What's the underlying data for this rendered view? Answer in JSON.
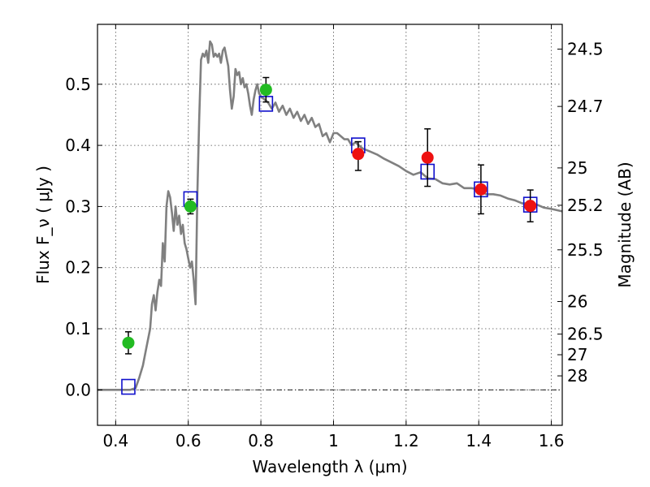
{
  "chart_data": {
    "type": "scatter",
    "title": "",
    "xlabel": "Wavelength  λ (μm)",
    "ylabel": "Flux  F_ν  ( μJy )",
    "ylabel_right": "Magnitude (AB)",
    "xlim": [
      0.35,
      1.63
    ],
    "ylim": [
      -0.058,
      0.598
    ],
    "grid": true,
    "colors": {
      "spectrum": "#808080",
      "optical_points": "#22bb22",
      "nir_points": "#ee1111",
      "model_boxes": "#1010cc",
      "errorbar": "#000000",
      "zero_line": "#000000"
    },
    "x_ticks": [
      {
        "value": 0.4,
        "label": "0.4"
      },
      {
        "value": 0.6,
        "label": "0.6"
      },
      {
        "value": 0.8,
        "label": "0.8"
      },
      {
        "value": 1.0,
        "label": "1"
      },
      {
        "value": 1.2,
        "label": "1.2"
      },
      {
        "value": 1.4,
        "label": "1.4"
      },
      {
        "value": 1.6,
        "label": "1.6"
      }
    ],
    "y_ticks": [
      {
        "value": 0.0,
        "label": "0.0"
      },
      {
        "value": 0.1,
        "label": "0.1"
      },
      {
        "value": 0.2,
        "label": "0.2"
      },
      {
        "value": 0.3,
        "label": "0.3"
      },
      {
        "value": 0.4,
        "label": "0.4"
      },
      {
        "value": 0.5,
        "label": "0.5"
      }
    ],
    "right_ticks": [
      {
        "flux": 0.5575,
        "label": "24.5"
      },
      {
        "flux": 0.4637,
        "label": "24.7"
      },
      {
        "flux": 0.3631,
        "label": "25"
      },
      {
        "flux": 0.302,
        "label": "25.2"
      },
      {
        "flux": 0.2291,
        "label": "25.5"
      },
      {
        "flux": 0.1445,
        "label": "26"
      },
      {
        "flux": 0.0912,
        "label": "26.5"
      },
      {
        "flux": 0.0575,
        "label": "27"
      },
      {
        "flux": 0.0229,
        "label": "28"
      }
    ],
    "series": [
      {
        "kind": "spectrum",
        "points": [
          [
            0.35,
            0.0
          ],
          [
            0.44,
            0.0
          ],
          [
            0.455,
            0.003
          ],
          [
            0.465,
            0.02
          ],
          [
            0.475,
            0.04
          ],
          [
            0.485,
            0.07
          ],
          [
            0.495,
            0.1
          ],
          [
            0.5,
            0.14
          ],
          [
            0.505,
            0.155
          ],
          [
            0.51,
            0.13
          ],
          [
            0.515,
            0.16
          ],
          [
            0.52,
            0.18
          ],
          [
            0.525,
            0.17
          ],
          [
            0.53,
            0.24
          ],
          [
            0.535,
            0.21
          ],
          [
            0.54,
            0.3
          ],
          [
            0.545,
            0.325
          ],
          [
            0.55,
            0.315
          ],
          [
            0.555,
            0.29
          ],
          [
            0.56,
            0.26
          ],
          [
            0.565,
            0.3
          ],
          [
            0.57,
            0.27
          ],
          [
            0.575,
            0.285
          ],
          [
            0.58,
            0.255
          ],
          [
            0.585,
            0.27
          ],
          [
            0.59,
            0.24
          ],
          [
            0.595,
            0.23
          ],
          [
            0.6,
            0.215
          ],
          [
            0.605,
            0.2
          ],
          [
            0.61,
            0.21
          ],
          [
            0.615,
            0.18
          ],
          [
            0.62,
            0.14
          ],
          [
            0.625,
            0.32
          ],
          [
            0.63,
            0.44
          ],
          [
            0.635,
            0.54
          ],
          [
            0.64,
            0.55
          ],
          [
            0.645,
            0.545
          ],
          [
            0.65,
            0.555
          ],
          [
            0.655,
            0.535
          ],
          [
            0.66,
            0.57
          ],
          [
            0.665,
            0.565
          ],
          [
            0.67,
            0.545
          ],
          [
            0.675,
            0.55
          ],
          [
            0.68,
            0.545
          ],
          [
            0.685,
            0.55
          ],
          [
            0.69,
            0.535
          ],
          [
            0.695,
            0.555
          ],
          [
            0.7,
            0.56
          ],
          [
            0.705,
            0.545
          ],
          [
            0.71,
            0.53
          ],
          [
            0.715,
            0.49
          ],
          [
            0.72,
            0.46
          ],
          [
            0.725,
            0.48
          ],
          [
            0.73,
            0.525
          ],
          [
            0.735,
            0.515
          ],
          [
            0.74,
            0.52
          ],
          [
            0.745,
            0.5
          ],
          [
            0.75,
            0.51
          ],
          [
            0.755,
            0.495
          ],
          [
            0.76,
            0.5
          ],
          [
            0.765,
            0.485
          ],
          [
            0.77,
            0.465
          ],
          [
            0.775,
            0.45
          ],
          [
            0.78,
            0.475
          ],
          [
            0.785,
            0.49
          ],
          [
            0.79,
            0.5
          ],
          [
            0.795,
            0.485
          ],
          [
            0.8,
            0.48
          ],
          [
            0.81,
            0.475
          ],
          [
            0.82,
            0.47
          ],
          [
            0.83,
            0.46
          ],
          [
            0.84,
            0.47
          ],
          [
            0.85,
            0.455
          ],
          [
            0.86,
            0.465
          ],
          [
            0.87,
            0.45
          ],
          [
            0.88,
            0.46
          ],
          [
            0.89,
            0.445
          ],
          [
            0.9,
            0.455
          ],
          [
            0.91,
            0.44
          ],
          [
            0.92,
            0.45
          ],
          [
            0.93,
            0.435
          ],
          [
            0.94,
            0.445
          ],
          [
            0.95,
            0.43
          ],
          [
            0.96,
            0.435
          ],
          [
            0.97,
            0.415
          ],
          [
            0.98,
            0.42
          ],
          [
            0.99,
            0.405
          ],
          [
            1.0,
            0.42
          ],
          [
            1.01,
            0.42
          ],
          [
            1.02,
            0.415
          ],
          [
            1.03,
            0.41
          ],
          [
            1.04,
            0.41
          ],
          [
            1.05,
            0.4
          ],
          [
            1.06,
            0.405
          ],
          [
            1.08,
            0.395
          ],
          [
            1.1,
            0.39
          ],
          [
            1.12,
            0.385
          ],
          [
            1.14,
            0.378
          ],
          [
            1.16,
            0.372
          ],
          [
            1.18,
            0.366
          ],
          [
            1.2,
            0.358
          ],
          [
            1.22,
            0.352
          ],
          [
            1.24,
            0.356
          ],
          [
            1.26,
            0.346
          ],
          [
            1.28,
            0.345
          ],
          [
            1.3,
            0.338
          ],
          [
            1.32,
            0.336
          ],
          [
            1.34,
            0.338
          ],
          [
            1.36,
            0.33
          ],
          [
            1.38,
            0.33
          ],
          [
            1.4,
            0.328
          ],
          [
            1.42,
            0.32
          ],
          [
            1.44,
            0.32
          ],
          [
            1.46,
            0.318
          ],
          [
            1.48,
            0.313
          ],
          [
            1.5,
            0.31
          ],
          [
            1.52,
            0.305
          ],
          [
            1.54,
            0.305
          ],
          [
            1.56,
            0.303
          ],
          [
            1.58,
            0.298
          ],
          [
            1.6,
            0.296
          ],
          [
            1.63,
            0.292
          ]
        ]
      },
      {
        "kind": "observed-optical",
        "points": [
          {
            "x": 0.435,
            "y": 0.077,
            "err": 0.018
          },
          {
            "x": 0.606,
            "y": 0.3,
            "err": 0.012
          },
          {
            "x": 0.814,
            "y": 0.491,
            "err": 0.02
          }
        ]
      },
      {
        "kind": "observed-nir",
        "points": [
          {
            "x": 1.068,
            "y": 0.386,
            "err_up": 0.02,
            "err_down": 0.027
          },
          {
            "x": 1.259,
            "y": 0.38,
            "err": 0.047
          },
          {
            "x": 1.406,
            "y": 0.328,
            "err": 0.04
          },
          {
            "x": 1.542,
            "y": 0.301,
            "err": 0.026
          }
        ]
      },
      {
        "kind": "synthetic-model",
        "points": [
          {
            "x": 0.435,
            "y": 0.005
          },
          {
            "x": 0.606,
            "y": 0.312
          },
          {
            "x": 0.814,
            "y": 0.468
          },
          {
            "x": 1.068,
            "y": 0.4
          },
          {
            "x": 1.259,
            "y": 0.357
          },
          {
            "x": 1.406,
            "y": 0.328
          },
          {
            "x": 1.542,
            "y": 0.303
          }
        ]
      }
    ]
  }
}
